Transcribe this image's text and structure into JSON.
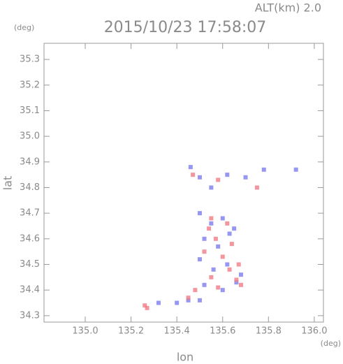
{
  "chart_data": {
    "type": "scatter",
    "title": "2015/10/23 17:58:07",
    "annotation": "ALT(km) 2.0",
    "y_unit": "(deg)",
    "x_unit": "(deg)",
    "ylabel": "lat",
    "xlabel": "lon",
    "xlim": [
      134.82,
      136.04
    ],
    "ylim": [
      34.275,
      35.363
    ],
    "xticks": [
      {
        "value": 135,
        "label": "135.0"
      },
      135.2,
      135.4,
      135.6,
      135.8,
      {
        "value": 136,
        "label": "136.0"
      }
    ],
    "yticks": [
      34.3,
      34.4,
      34.5,
      34.6,
      34.7,
      34.8,
      34.9,
      {
        "value": 35,
        "label": "35.0"
      },
      35.1,
      35.2,
      35.3
    ],
    "series": [
      {
        "color": "#7c7cf0",
        "x": [
          135.46,
          135.5,
          135.55,
          135.62,
          135.7,
          135.78,
          135.92,
          135.5,
          135.55,
          135.6,
          135.65,
          135.52,
          135.58,
          135.63,
          135.5,
          135.56,
          135.62,
          135.68,
          135.52,
          135.6,
          135.66,
          135.32,
          135.4,
          135.45,
          135.5
        ],
        "values": [
          34.88,
          34.84,
          34.8,
          34.85,
          34.84,
          34.87,
          34.87,
          34.7,
          34.66,
          34.68,
          34.64,
          34.6,
          34.57,
          34.62,
          34.52,
          34.48,
          34.5,
          34.46,
          34.42,
          34.4,
          34.43,
          34.35,
          34.35,
          34.36,
          34.36
        ]
      },
      {
        "color": "#f07c84",
        "x": [
          135.26,
          135.27,
          135.47,
          135.58,
          135.75,
          135.55,
          135.62,
          135.57,
          135.64,
          135.52,
          135.6,
          135.67,
          135.55,
          135.63,
          135.68,
          135.48,
          135.58,
          135.66,
          135.45,
          135.54
        ],
        "values": [
          34.34,
          34.33,
          34.85,
          34.83,
          34.8,
          34.68,
          34.66,
          34.6,
          34.58,
          34.55,
          34.53,
          34.5,
          34.45,
          34.48,
          34.42,
          34.4,
          34.41,
          34.44,
          34.37,
          34.64
        ]
      }
    ]
  }
}
